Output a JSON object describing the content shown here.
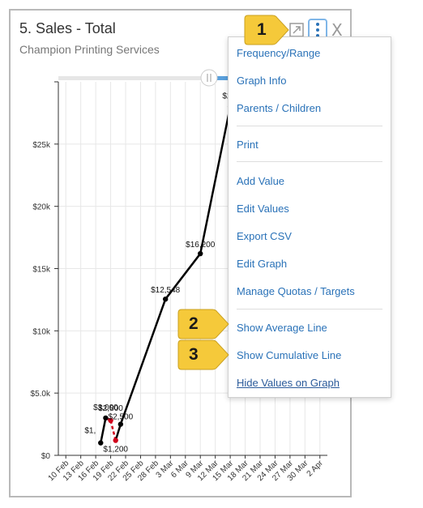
{
  "card": {
    "title": "5. Sales - Total",
    "subtitle": "Champion Printing Services",
    "close_label": "X"
  },
  "menu": {
    "items": [
      {
        "label": "Frequency/Range"
      },
      {
        "label": "Graph Info"
      },
      {
        "label": "Parents / Children"
      },
      {
        "label": "Print"
      },
      {
        "label": "Add Value"
      },
      {
        "label": "Edit Values"
      },
      {
        "label": "Export CSV"
      },
      {
        "label": "Edit Graph"
      },
      {
        "label": "Manage Quotas / Targets"
      },
      {
        "label": "Show Average Line"
      },
      {
        "label": "Show Cumulative Line"
      },
      {
        "label": "Hide Values on Graph"
      }
    ]
  },
  "callouts": [
    {
      "number": "1"
    },
    {
      "number": "2"
    },
    {
      "number": "3"
    }
  ],
  "colors": {
    "link": "#2a72b8",
    "callout": "#f5c93a",
    "line": "#000000",
    "negative_segment": "#d0021b"
  },
  "icons": [
    "expand-icon",
    "more-vertical-icon",
    "close-icon"
  ],
  "chart_data": {
    "type": "line",
    "title": "",
    "xlabel": "",
    "ylabel": "",
    "grid": true,
    "categories": [
      "10 Feb",
      "13 Feb",
      "16 Feb",
      "19 Feb",
      "22 Feb",
      "25 Feb",
      "28 Feb",
      "3 Mar",
      "6 Mar",
      "9 Mar",
      "12 Mar",
      "15 Mar",
      "18 Mar",
      "21 Mar",
      "24 Mar",
      "27 Mar",
      "30 Mar",
      "2 Apr"
    ],
    "y_ticks": [
      "$0",
      "$5.0k",
      "$10k",
      "$15k",
      "$20k",
      "$25k"
    ],
    "ylim": [
      0,
      30000
    ],
    "series": [
      {
        "points": [
          {
            "x": "17 Feb",
            "y": 1000,
            "label": "$1,"
          },
          {
            "x": "18 Feb",
            "y": 3000,
            "label": "$3,000"
          },
          {
            "x": "19 Feb",
            "y": 2800,
            "label": "$2,800"
          },
          {
            "x": "20 Feb",
            "y": 1200,
            "label": "$1,200"
          },
          {
            "x": "21 Feb",
            "y": 2500,
            "label": "$2,500"
          },
          {
            "x": "1 Mar",
            "y": 12548,
            "label": "$12,548"
          },
          {
            "x": "8 Mar",
            "y": 16200,
            "label": "$16,200"
          },
          {
            "x": "14 Mar",
            "y": 28000,
            "label": "$28,"
          }
        ]
      }
    ]
  }
}
